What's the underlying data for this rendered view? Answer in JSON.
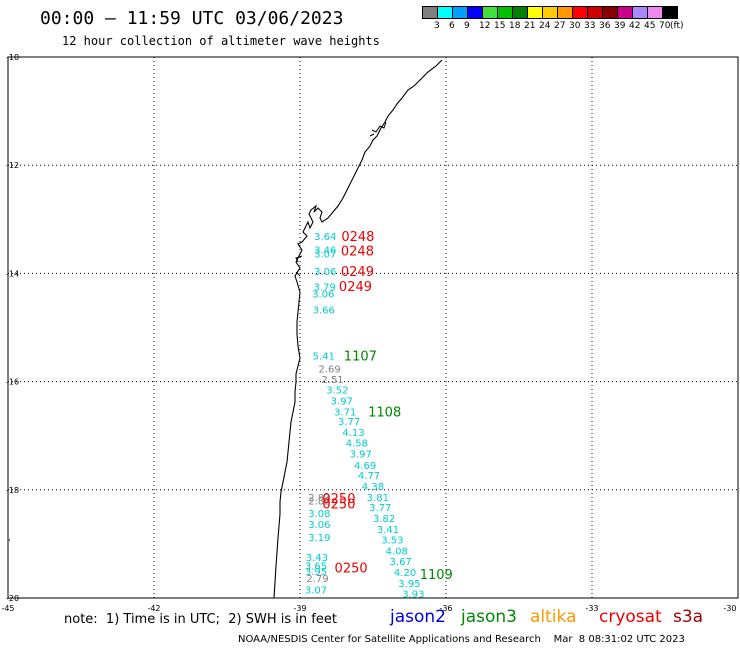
{
  "title": "00:00 – 11:59 UTC 03/06/2023",
  "subtitle": "12 hour collection of altimeter wave heights",
  "legend": {
    "unit": "(ft)",
    "colors": [
      "#808080",
      "#00ffff",
      "#00a0ff",
      "#0000ff",
      "#40e040",
      "#00c000",
      "#008000",
      "#ffff00",
      "#ffcc00",
      "#ff9900",
      "#ff0000",
      "#cc0000",
      "#880000",
      "#cc0088",
      "#aa88ff",
      "#ee88ee",
      "#000000"
    ],
    "labels": [
      "3",
      "6",
      "9",
      "12",
      "15",
      "18",
      "21",
      "24",
      "27",
      "30",
      "33",
      "36",
      "39",
      "42",
      "45",
      "70"
    ]
  },
  "map": {
    "lat_ticks": [
      "-10",
      "-12",
      "-14",
      "-16",
      "-18",
      "-20"
    ],
    "lon_ticks": [
      "-45",
      "-42",
      "-39",
      "-36",
      "-33",
      "-30"
    ],
    "grid": true
  },
  "observations": [
    {
      "swh": "3.64",
      "color": "#00cccc",
      "lon": -38.71,
      "lat": -13.31
    },
    {
      "swh": "3.46",
      "color": "#00cccc",
      "lon": -38.71,
      "lat": -13.56
    },
    {
      "swh": "3.07",
      "color": "#00cccc",
      "lon": -38.71,
      "lat": -13.63
    },
    {
      "swh": "3.06",
      "color": "#00cccc",
      "lon": -38.71,
      "lat": -13.96
    },
    {
      "swh": "3.79",
      "color": "#00cccc",
      "lon": -38.72,
      "lat": -14.24
    },
    {
      "swh": "3.06",
      "color": "#00cccc",
      "lon": -38.75,
      "lat": -14.37
    },
    {
      "swh": "3.66",
      "color": "#00cccc",
      "lon": -38.74,
      "lat": -14.67
    },
    {
      "swh": "5.41",
      "color": "#00cccc",
      "lon": -38.74,
      "lat": -15.52
    },
    {
      "swh": "2.69",
      "color": "#808080",
      "lon": -38.62,
      "lat": -15.76
    },
    {
      "swh": "2.51",
      "color": "#808080",
      "lon": -38.56,
      "lat": -15.95
    },
    {
      "swh": "3.52",
      "color": "#00cccc",
      "lon": -38.46,
      "lat": -16.15
    },
    {
      "swh": "3.97",
      "color": "#00cccc",
      "lon": -38.37,
      "lat": -16.35
    },
    {
      "swh": "3.71",
      "color": "#00cccc",
      "lon": -38.3,
      "lat": -16.55
    },
    {
      "swh": "3.77",
      "color": "#00cccc",
      "lon": -38.22,
      "lat": -16.73
    },
    {
      "swh": "4.13",
      "color": "#00cccc",
      "lon": -38.13,
      "lat": -16.93
    },
    {
      "swh": "4.58",
      "color": "#00cccc",
      "lon": -38.06,
      "lat": -17.13
    },
    {
      "swh": "3.97",
      "color": "#00cccc",
      "lon": -37.98,
      "lat": -17.33
    },
    {
      "swh": "4.69",
      "color": "#00cccc",
      "lon": -37.89,
      "lat": -17.54
    },
    {
      "swh": "4.77",
      "color": "#00cccc",
      "lon": -37.81,
      "lat": -17.73
    },
    {
      "swh": "4.38",
      "color": "#00cccc",
      "lon": -37.73,
      "lat": -17.93
    },
    {
      "swh": "2.83",
      "color": "#808080",
      "lon": -38.83,
      "lat": -18.13
    },
    {
      "swh": "2.82",
      "color": "#808080",
      "lon": -38.83,
      "lat": -18.2
    },
    {
      "swh": "3.81",
      "color": "#00cccc",
      "lon": -37.63,
      "lat": -18.13
    },
    {
      "swh": "3.77",
      "color": "#00cccc",
      "lon": -37.58,
      "lat": -18.32
    },
    {
      "swh": "3.08",
      "color": "#00cccc",
      "lon": -38.83,
      "lat": -18.43
    },
    {
      "swh": "3.06",
      "color": "#00cccc",
      "lon": -38.83,
      "lat": -18.63
    },
    {
      "swh": "3.82",
      "color": "#00cccc",
      "lon": -37.5,
      "lat": -18.52
    },
    {
      "swh": "3.41",
      "color": "#00cccc",
      "lon": -37.42,
      "lat": -18.72
    },
    {
      "swh": "3.19",
      "color": "#00cccc",
      "lon": -38.83,
      "lat": -18.87
    },
    {
      "swh": "3.53",
      "color": "#00cccc",
      "lon": -37.33,
      "lat": -18.92
    },
    {
      "swh": "4.08",
      "color": "#00cccc",
      "lon": -37.24,
      "lat": -19.12
    },
    {
      "swh": "3.43",
      "color": "#00cccc",
      "lon": -38.88,
      "lat": -19.24
    },
    {
      "swh": "3.67",
      "color": "#00cccc",
      "lon": -37.16,
      "lat": -19.32
    },
    {
      "swh": "3.65",
      "color": "#00cccc",
      "lon": -38.9,
      "lat": -19.4
    },
    {
      "swh": "3.95",
      "color": "#00cccc",
      "lon": -38.9,
      "lat": -19.5
    },
    {
      "swh": "4.20",
      "color": "#00cccc",
      "lon": -37.07,
      "lat": -19.52
    },
    {
      "swh": "2.79",
      "color": "#808080",
      "lon": -38.87,
      "lat": -19.63
    },
    {
      "swh": "3.95",
      "color": "#00cccc",
      "lon": -36.98,
      "lat": -19.72
    },
    {
      "swh": "3.07",
      "color": "#00cccc",
      "lon": -38.9,
      "lat": -19.84
    },
    {
      "swh": "3.93",
      "color": "#00cccc",
      "lon": -36.9,
      "lat": -19.92
    }
  ],
  "time_labels": [
    {
      "time": "0248",
      "color": "#ee0000",
      "lon": -38.15,
      "lat": -13.31
    },
    {
      "time": "0248",
      "color": "#ee0000",
      "lon": -38.16,
      "lat": -13.58
    },
    {
      "time": "0249",
      "color": "#ee0000",
      "lon": -38.16,
      "lat": -13.96
    },
    {
      "time": "0249",
      "color": "#ee0000",
      "lon": -38.2,
      "lat": -14.23
    },
    {
      "time": "1107",
      "color": "#008800",
      "lon": -38.1,
      "lat": -15.52
    },
    {
      "time": "1108",
      "color": "#008800",
      "lon": -37.6,
      "lat": -16.55
    },
    {
      "time": "0250",
      "color": "#ee0000",
      "lon": -38.54,
      "lat": -18.15
    },
    {
      "time": "0250",
      "color": "#ee0000",
      "lon": -38.54,
      "lat": -18.25
    },
    {
      "time": "0250",
      "color": "#ee0000",
      "lon": -38.29,
      "lat": -19.44
    },
    {
      "time": "1109",
      "color": "#008800",
      "lon": -36.54,
      "lat": -19.56
    }
  ],
  "footer": {
    "note": "note:  1) Time is in UTC;  2) SWH is in feet",
    "missions": [
      {
        "name": "jason2",
        "color": "#0000dd"
      },
      {
        "name": "jason3",
        "color": "#008800"
      },
      {
        "name": "altika",
        "color": "#ff9900"
      },
      {
        "name": "cryosat",
        "color": "#ee0000"
      },
      {
        "name": "s3a",
        "color": "#990000"
      }
    ],
    "credit": "NOAA/NESDIS Center for Satellite Applications and Research    Mar  8 08:31:02 UTC 2023"
  }
}
